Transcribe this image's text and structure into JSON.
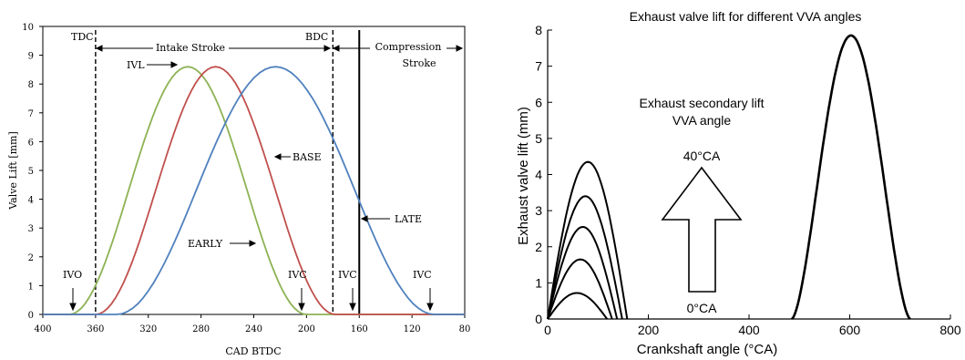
{
  "chart_data": [
    {
      "type": "line",
      "xlabel": "CAD BTDC",
      "ylabel": "Valve Lift [mm]",
      "xlim": [
        400,
        80
      ],
      "ylim": [
        0,
        10
      ],
      "x_ticks": [
        "400",
        "360",
        "320",
        "280",
        "240",
        "200",
        "160",
        "120",
        "80"
      ],
      "y_ticks": [
        "0",
        "1",
        "2",
        "3",
        "4",
        "5",
        "6",
        "7",
        "8",
        "9",
        "10"
      ],
      "grid": false,
      "series": [
        {
          "name": "EARLY",
          "color": "#8db254",
          "open": 380,
          "close": 200,
          "peak": 8.6
        },
        {
          "name": "BASE",
          "color": "#c0504d",
          "open": 360,
          "close": 178,
          "peak": 8.6
        },
        {
          "name": "LATE",
          "color": "#4f81bd",
          "open": 344,
          "close": 103,
          "peak": 8.6
        }
      ],
      "reference_lines": [
        {
          "label": "TDC",
          "x": 360,
          "style": "dashed"
        },
        {
          "label": "BDC",
          "x": 180,
          "style": "dashed"
        },
        {
          "label": "",
          "x": 160,
          "style": "solid"
        }
      ],
      "annotations": {
        "intake": "Intake Stroke",
        "compression_1": "Compression",
        "compression_2": "Stroke",
        "ivl": "IVL",
        "base": "BASE",
        "early": "EARLY",
        "late": "LATE",
        "ivo": "IVO",
        "ivc": "IVC"
      }
    },
    {
      "type": "line",
      "title": "Exhaust valve lift for different VVA angles",
      "xlabel": "Crankshaft angle (°CA)",
      "ylabel": "Exhaust valve lift (mm)",
      "xlim": [
        0,
        800
      ],
      "ylim": [
        0,
        8
      ],
      "x_ticks": [
        "0",
        "200",
        "400",
        "600",
        "800"
      ],
      "y_ticks": [
        "0",
        "1",
        "2",
        "3",
        "4",
        "5",
        "6",
        "7",
        "8"
      ],
      "grid": false,
      "main_lift": {
        "open": 485,
        "close": 720,
        "peak": 7.85
      },
      "secondary_lifts": [
        {
          "peak": 4.35,
          "peak_at": 80,
          "close": 158
        },
        {
          "peak": 3.4,
          "peak_at": 75,
          "close": 148
        },
        {
          "peak": 2.55,
          "peak_at": 70,
          "close": 138
        },
        {
          "peak": 1.65,
          "peak_at": 65,
          "close": 128
        },
        {
          "peak": 0.72,
          "peak_at": 58,
          "close": 118
        }
      ],
      "annotations": {
        "legend_1": "Exhaust secondary lift",
        "legend_2": "VVA angle",
        "top": "40°CA",
        "bottom": "0°CA"
      }
    }
  ]
}
